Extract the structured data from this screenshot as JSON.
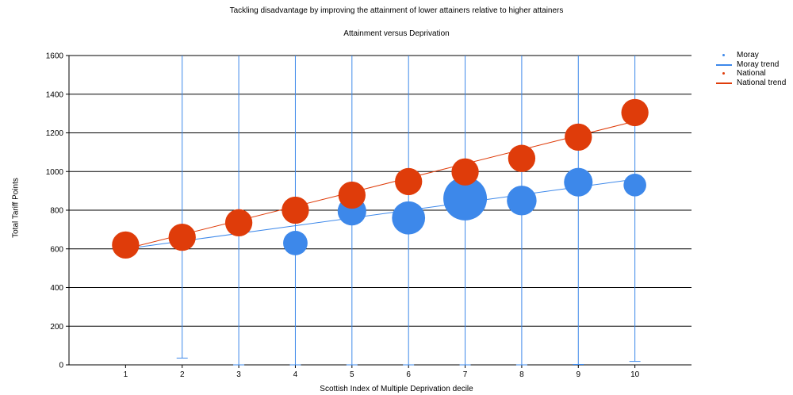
{
  "chart_data": {
    "type": "scatter",
    "title": "Tackling disadvantage by improving the attainment of lower attainers relative to higher attainers",
    "subtitle": "Attainment versus Deprivation",
    "xlabel": "Scottish Index of Multiple Deprivation decile",
    "ylabel": "Total Tariff Points",
    "xlim": [
      0,
      11
    ],
    "ylim": [
      0,
      1600
    ],
    "x_ticks": [
      "1",
      "2",
      "3",
      "4",
      "5",
      "6",
      "7",
      "8",
      "9",
      "10"
    ],
    "y_ticks": [
      "0",
      "200",
      "400",
      "600",
      "800",
      "1000",
      "1200",
      "1400",
      "1600"
    ],
    "grid": true,
    "legend_position": "top-right",
    "series": [
      {
        "name": "Moray",
        "color": "#3d88ea",
        "points": [
          {
            "x": 4,
            "y": 630,
            "size": 0.7
          },
          {
            "x": 5,
            "y": 795,
            "size": 0.82
          },
          {
            "x": 6,
            "y": 760,
            "size": 0.95
          },
          {
            "x": 7,
            "y": 860,
            "size": 1.25
          },
          {
            "x": 8,
            "y": 850,
            "size": 0.85
          },
          {
            "x": 9,
            "y": 945,
            "size": 0.82
          },
          {
            "x": 10,
            "y": 930,
            "size": 0.65
          }
        ]
      },
      {
        "name": "Moray trend",
        "color": "#3d88ea",
        "line": [
          {
            "x": 1,
            "y": 600
          },
          {
            "x": 10,
            "y": 960
          }
        ]
      },
      {
        "name": "National",
        "color": "#df3c0a",
        "points": [
          {
            "x": 1,
            "y": 620,
            "size": 0.78
          },
          {
            "x": 2,
            "y": 660,
            "size": 0.78
          },
          {
            "x": 3,
            "y": 735,
            "size": 0.78
          },
          {
            "x": 4,
            "y": 800,
            "size": 0.78
          },
          {
            "x": 5,
            "y": 878,
            "size": 0.78
          },
          {
            "x": 6,
            "y": 948,
            "size": 0.78
          },
          {
            "x": 7,
            "y": 998,
            "size": 0.78
          },
          {
            "x": 8,
            "y": 1068,
            "size": 0.78
          },
          {
            "x": 9,
            "y": 1178,
            "size": 0.78
          },
          {
            "x": 10,
            "y": 1305,
            "size": 0.78
          }
        ]
      },
      {
        "name": "National trend",
        "color": "#df3c0a",
        "line": [
          {
            "x": 1,
            "y": 600
          },
          {
            "x": 10,
            "y": 1260
          }
        ]
      }
    ],
    "error_bars": {
      "color": "#3d88ea",
      "items": [
        {
          "x": 2,
          "low": 35,
          "high": 1600
        },
        {
          "x": 3,
          "low": 0,
          "high": 1600
        },
        {
          "x": 4,
          "low": 0,
          "high": 1600
        },
        {
          "x": 5,
          "low": 0,
          "high": 1600
        },
        {
          "x": 6,
          "low": 0,
          "high": 1600
        },
        {
          "x": 7,
          "low": 0,
          "high": 1600
        },
        {
          "x": 8,
          "low": 0,
          "high": 1600
        },
        {
          "x": 9,
          "low": 2,
          "high": 1600
        },
        {
          "x": 10,
          "low": 18,
          "high": 1600
        }
      ]
    }
  }
}
